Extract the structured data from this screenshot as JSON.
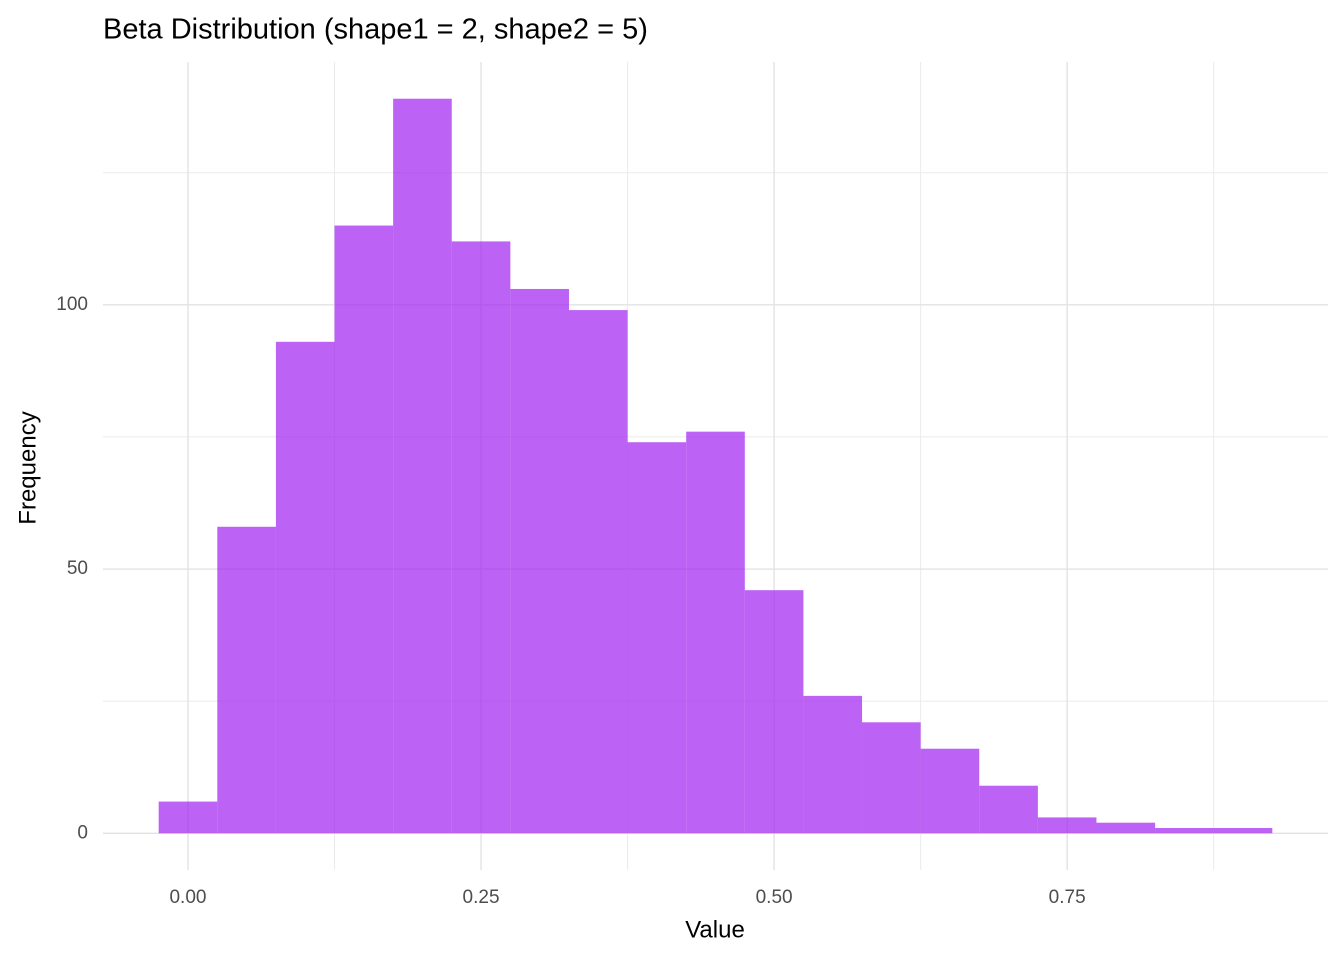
{
  "chart_data": {
    "type": "histogram",
    "title": "Beta Distribution (shape1 = 2, shape2 = 5)",
    "x_label": "Value",
    "y_label": "Frequency",
    "bins": [
      -0.025,
      0.025,
      0.075,
      0.125,
      0.175,
      0.225,
      0.275,
      0.325,
      0.375,
      0.425,
      0.475,
      0.525,
      0.575,
      0.625,
      0.675,
      0.725,
      0.775,
      0.825,
      0.875,
      0.925
    ],
    "values": [
      6,
      58,
      93,
      115,
      139,
      112,
      103,
      99,
      74,
      76,
      46,
      26,
      21,
      16,
      9,
      3,
      2,
      1,
      1
    ],
    "color": "#a020f0",
    "alpha": 0.7,
    "xlim": [
      -0.0725,
      0.9725
    ],
    "ylim": [
      -6.95,
      145.95
    ],
    "xticks": [
      {
        "value": 0,
        "label": "0.00"
      },
      0.25,
      {
        "value": 0.5,
        "label": "0.50"
      },
      0.75
    ],
    "yticks": [
      0,
      50,
      100
    ],
    "xminor": [
      0.125,
      0.375,
      0.625,
      0.875
    ],
    "yminor": [
      25,
      75,
      125
    ],
    "grid": true
  }
}
